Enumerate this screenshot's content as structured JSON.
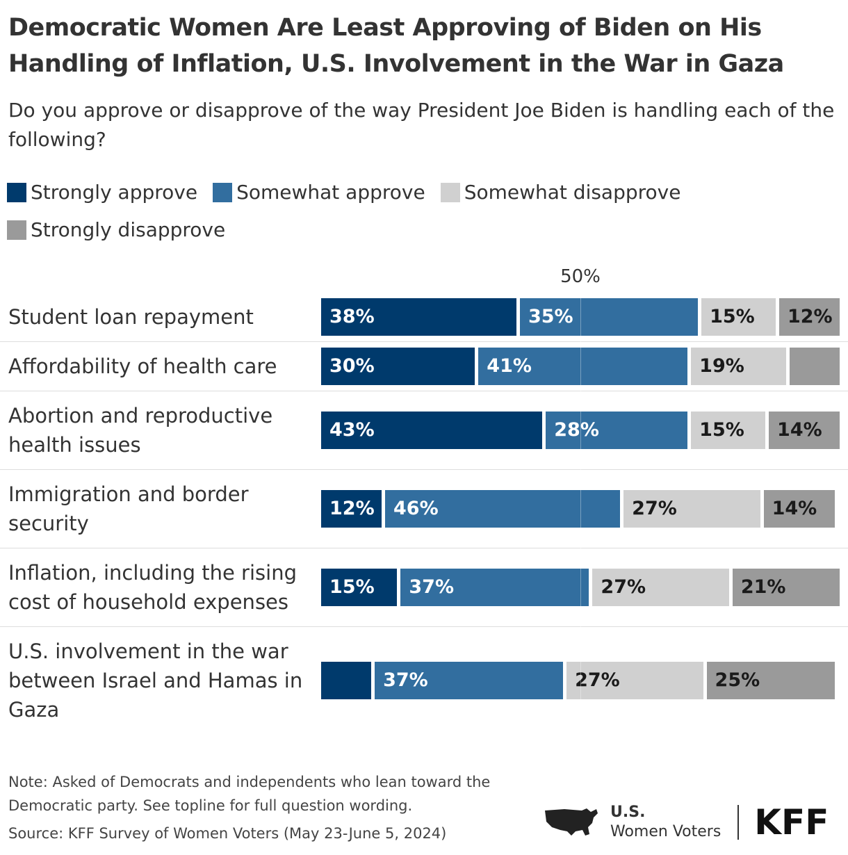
{
  "chart_data": {
    "type": "stacked-bar-horizontal",
    "title": "Democratic Women Are Least Approving of Biden on His Handling of Inflation, U.S. Involvement in the War in Gaza",
    "subtitle": "Do you approve or disapprove of the way President Joe Biden is handling each of the following?",
    "categories": [
      "Student loan repayment",
      "Affordability of health care",
      "Abortion and reproductive health issues",
      "Immigration and border security",
      "Inflation, including the rising cost of household expenses",
      "U.S. involvement in the war between Israel and Hamas in Gaza"
    ],
    "series": [
      {
        "name": "Strongly approve",
        "color": "#003a6c",
        "text_color": "#ffffff",
        "values": [
          38,
          30,
          43,
          12,
          15,
          10
        ],
        "value_labels": [
          "38%",
          "30%",
          "43%",
          "12%",
          "15%",
          null
        ]
      },
      {
        "name": "Somewhat approve",
        "color": "#326e9f",
        "text_color": "#ffffff",
        "values": [
          35,
          41,
          28,
          46,
          37,
          37
        ],
        "value_labels": [
          "35%",
          "41%",
          "28%",
          "46%",
          "37%",
          "37%"
        ]
      },
      {
        "name": "Somewhat disapprove",
        "color": "#d0d0d0",
        "text_color": "#1a1a1a",
        "values": [
          15,
          19,
          15,
          27,
          27,
          27
        ],
        "value_labels": [
          "15%",
          "19%",
          "15%",
          "27%",
          "27%",
          "27%"
        ]
      },
      {
        "name": "Strongly disapprove",
        "color": "#9a9a9a",
        "text_color": "#1a1a1a",
        "values": [
          12,
          10,
          14,
          14,
          21,
          25
        ],
        "value_labels": [
          "12%",
          null,
          "14%",
          "14%",
          "21%",
          "25%"
        ]
      }
    ],
    "xlim": [
      0,
      100
    ],
    "midline": {
      "value": 50,
      "label": "50%"
    },
    "note": "Note: Asked of Democrats and independents who lean toward the Democratic party. See topline for full question wording.",
    "source": "Source: KFF Survey of Women Voters (May 23-June 5, 2024)",
    "branding": {
      "line1": "U.S.",
      "line2": "Women Voters",
      "logo": "KFF"
    }
  }
}
